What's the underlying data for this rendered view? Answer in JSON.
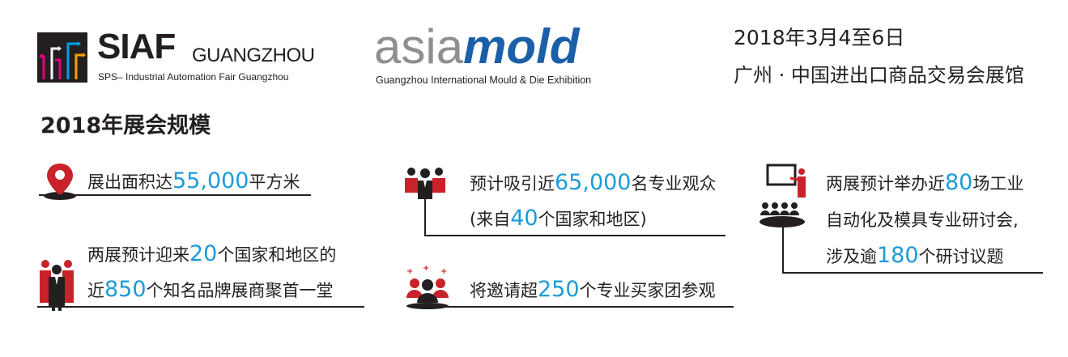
{
  "header": {
    "siaf": {
      "brand": "SIAF",
      "city": "GUANGZHOU",
      "tagline": "SPS– Industrial Automation Fair Guangzhou"
    },
    "asiamold": {
      "part1": "asia",
      "part2": "mold",
      "tagline": "Guangzhou International Mould & Die Exhibition"
    },
    "date": "2018年3月4至6日",
    "venue": "广州 · 中国进出口商品交易会展馆"
  },
  "section_title": "2018年展会规模",
  "stats": {
    "area": {
      "pre": "展出面积达",
      "num": "55,000",
      "post": "平方米"
    },
    "brands": {
      "line1_pre": "两展预计迎来",
      "line1_num": "20",
      "line1_post": "个国家和地区的",
      "line2_pre": "近",
      "line2_num": "850",
      "line2_post": "个知名品牌展商聚首一堂"
    },
    "visitors": {
      "line1_pre": "预计吸引近",
      "line1_num": "65,000",
      "line1_post": "名专业观众",
      "line2_pre": "(来自",
      "line2_num": "40",
      "line2_post": "个国家和地区)"
    },
    "delegations": {
      "pre": "将邀请超",
      "num": "250",
      "post": "个专业买家团参观"
    },
    "seminars": {
      "line1_pre": "两展预计举办近",
      "line1_num": "80",
      "line1_post": "场工业",
      "line2": "自动化及模具专业研讨会,",
      "line3_pre": "涉及逾",
      "line3_num": "180",
      "line3_post": "个研讨议题"
    }
  },
  "colors": {
    "accent_number": "#1d9bd8",
    "icon_red": "#c8222a",
    "asia_gray": "#8d8f91",
    "mold_blue": "#1b5fa8"
  },
  "icons": [
    "siaf-logo-mark",
    "location-pin-icon",
    "audience-icon",
    "business-group-icon",
    "buyer-group-icon",
    "seminar-presenter-icon"
  ]
}
